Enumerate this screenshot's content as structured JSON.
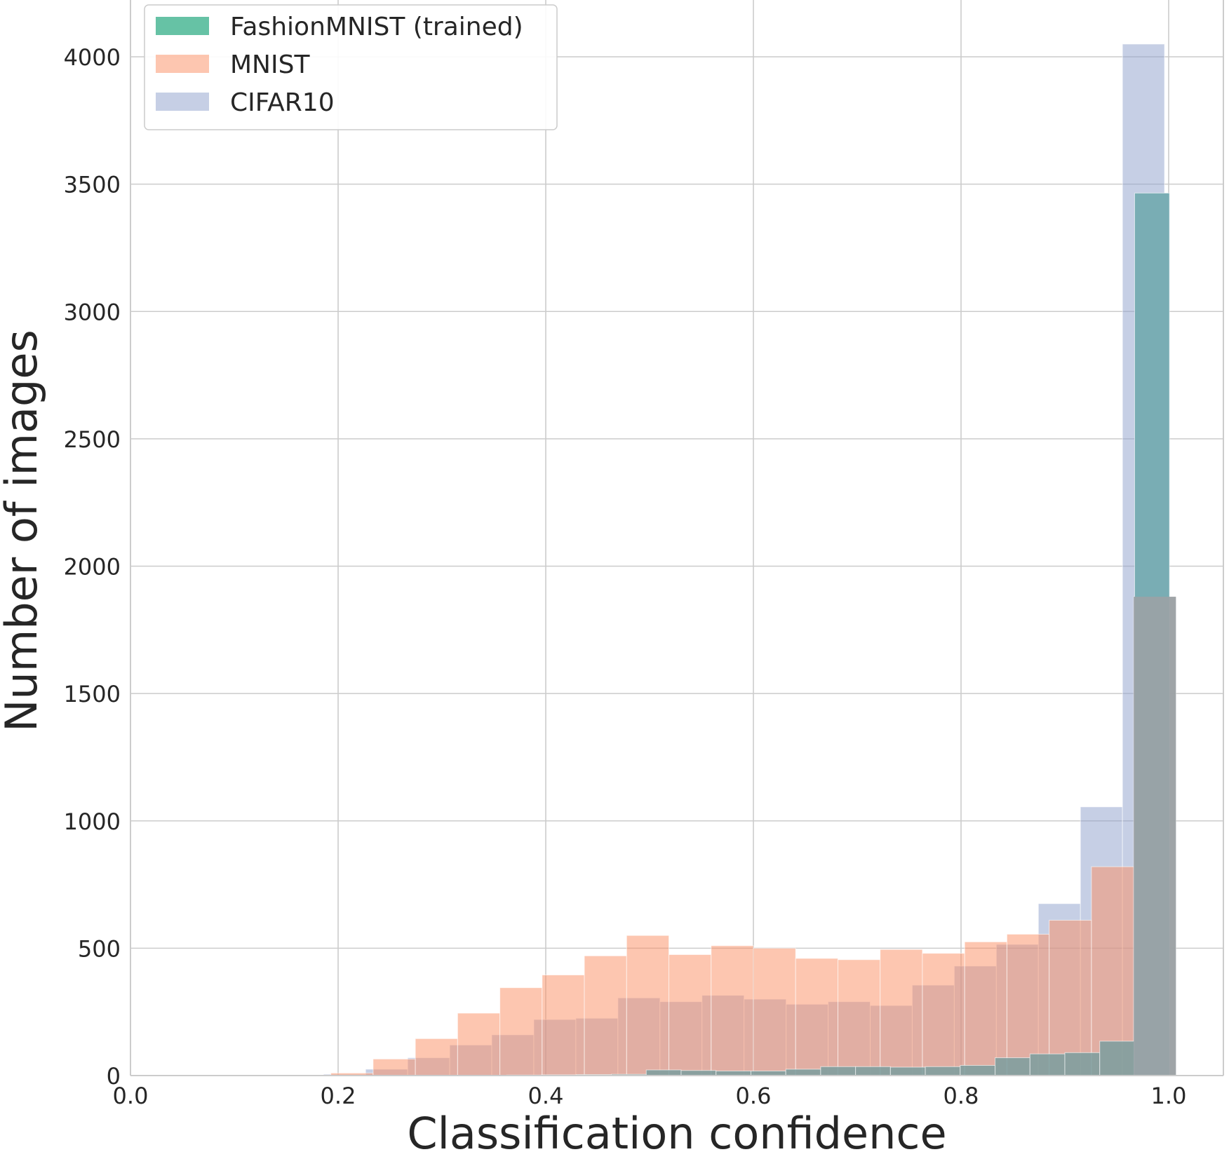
{
  "chart_data": {
    "type": "bar",
    "subtype": "overlaid histogram",
    "xlabel": "Classification confidence",
    "ylabel": "Number of images",
    "xlim": [
      0.0,
      1.025
    ],
    "ylim": [
      0,
      4200
    ],
    "grid": true,
    "legend_placement": "top-left",
    "x_ticks": [
      "0.0",
      "0.2",
      "0.4",
      "0.6",
      "0.8",
      "1.0"
    ],
    "y_ticks": [
      "0",
      "500",
      "1000",
      "1500",
      "2000",
      "2500",
      "3000",
      "3500",
      "4000"
    ],
    "series": [
      {
        "name": "CIFAR10",
        "color": "#8da0cb",
        "opacity": 0.5,
        "bin_width": 0.0405,
        "bin_left": [
          0.186,
          0.2265,
          0.267,
          0.3075,
          0.348,
          0.3885,
          0.429,
          0.4695,
          0.51,
          0.5505,
          0.591,
          0.6315,
          0.672,
          0.7125,
          0.753,
          0.7935,
          0.834,
          0.8745,
          0.915,
          0.9555
        ],
        "values": [
          5,
          25,
          70,
          120,
          160,
          220,
          225,
          305,
          290,
          315,
          300,
          280,
          290,
          275,
          355,
          430,
          515,
          675,
          1055,
          4050
        ]
      },
      {
        "name": "MNIST",
        "color": "#fc8d62",
        "opacity": 0.5,
        "bin_width": 0.0407,
        "bin_left": [
          0.193,
          0.2337,
          0.2744,
          0.3151,
          0.3558,
          0.3965,
          0.4372,
          0.4779,
          0.5186,
          0.5593,
          0.6,
          0.6407,
          0.6814,
          0.7221,
          0.7628,
          0.8035,
          0.8442,
          0.8849,
          0.9256,
          0.9663
        ],
        "values": [
          10,
          65,
          145,
          245,
          345,
          395,
          470,
          550,
          475,
          510,
          500,
          460,
          455,
          495,
          480,
          525,
          555,
          610,
          820,
          1880
        ]
      },
      {
        "name": "FashionMNIST (trained)",
        "color": "#66c2a5",
        "opacity": 1.0,
        "bin_width": 0.0336,
        "bin_left": [
          0.3288,
          0.3624,
          0.396,
          0.4296,
          0.4632,
          0.4968,
          0.5304,
          0.564,
          0.5976,
          0.6312,
          0.6648,
          0.6984,
          0.732,
          0.7656,
          0.7992,
          0.8328,
          0.8664,
          0.9,
          0.9336,
          0.9672
        ],
        "values": [
          1,
          2,
          3,
          4,
          5,
          22,
          20,
          18,
          18,
          25,
          35,
          35,
          33,
          35,
          40,
          70,
          85,
          90,
          135,
          3465
        ]
      }
    ],
    "legend_order": [
      "FashionMNIST (trained)",
      "MNIST",
      "CIFAR10"
    ]
  }
}
